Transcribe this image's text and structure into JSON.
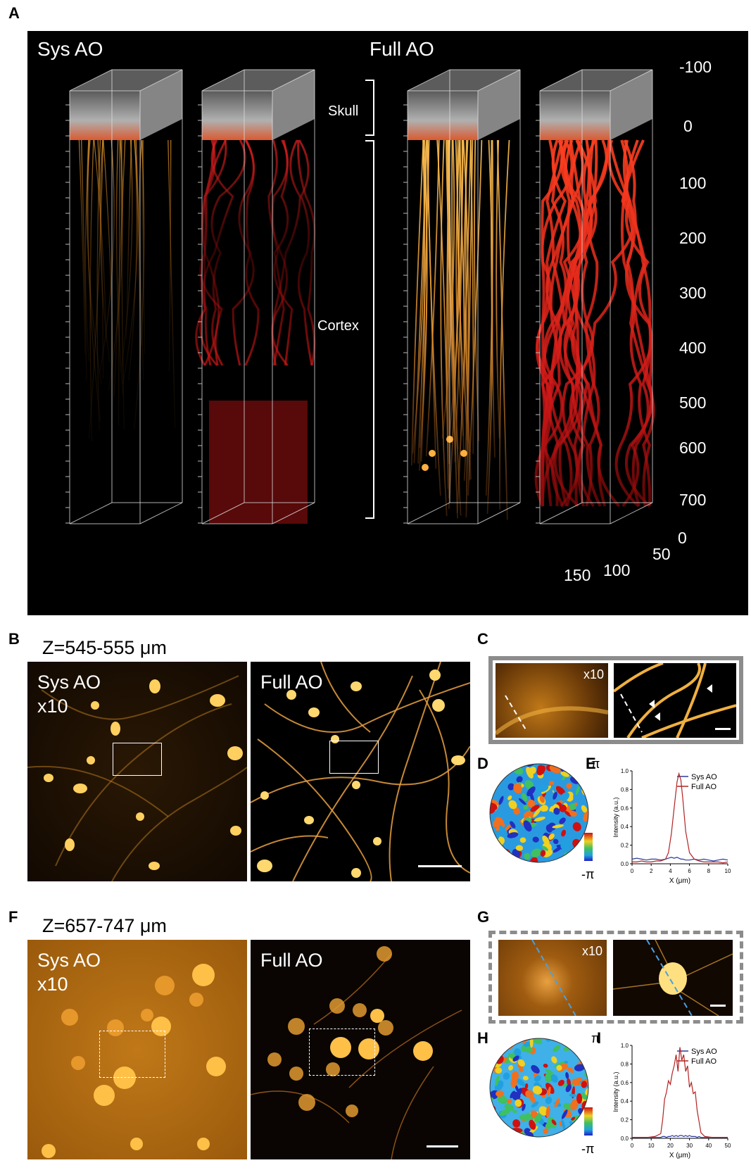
{
  "panel_labels": {
    "a": "A",
    "b": "B",
    "c": "C",
    "d": "D",
    "e": "E",
    "f": "F",
    "g": "G",
    "h": "H",
    "i": "I"
  },
  "panel_a": {
    "sys_label": "Sys AO",
    "full_label": "Full AO",
    "skull_label": "Skull",
    "cortex_label": "Cortex",
    "depth_ticks": [
      "-100",
      "0",
      "100",
      "200",
      "300",
      "400",
      "500",
      "600",
      "700"
    ],
    "base_ticks": {
      "z0": "0",
      "x50": "50",
      "x100": "100",
      "x150": "150"
    },
    "colors": {
      "neuron": "#f0a030",
      "vessel": "#d81818",
      "skull": "#c8c8c8"
    }
  },
  "panel_b": {
    "title": "Z=545-555 μm",
    "sys_label_line1": "Sys AO",
    "sys_label_line2": "x10",
    "full_label": "Full AO"
  },
  "panel_c": {
    "zoom_label": "x10"
  },
  "panel_d": {
    "pi_max": "π",
    "pi_min": "-π"
  },
  "panel_f": {
    "title": "Z=657-747 μm",
    "sys_label_line1": "Sys AO",
    "sys_label_line2": "x10",
    "full_label": "Full AO"
  },
  "panel_g": {
    "zoom_label": "x10"
  },
  "panel_h": {
    "pi_max": "π",
    "pi_min": "-π"
  },
  "chart_data": [
    {
      "panel": "E",
      "type": "line",
      "xlabel": "X (μm)",
      "ylabel": "Intensity (a.u.)",
      "xlim": [
        0,
        10
      ],
      "ylim": [
        0,
        1.0
      ],
      "xticks": [
        "0",
        "2",
        "4",
        "6",
        "8",
        "10"
      ],
      "yticks": [
        "0.0",
        "0.2",
        "0.4",
        "0.6",
        "0.8",
        "1.0"
      ],
      "legend": "top-right",
      "x": [
        0,
        0.5,
        1,
        1.5,
        2,
        2.5,
        3,
        3.5,
        3.8,
        4.1,
        4.4,
        4.7,
        4.9,
        5.1,
        5.3,
        5.6,
        6,
        6.5,
        7,
        7.5,
        8,
        8.5,
        9,
        9.5,
        10
      ],
      "series": [
        {
          "name": "Sys AO",
          "color": "#2a3a9a",
          "values": [
            0.05,
            0.06,
            0.05,
            0.04,
            0.05,
            0.05,
            0.04,
            0.05,
            0.06,
            0.07,
            0.06,
            0.07,
            0.06,
            0.05,
            0.05,
            0.04,
            0.04,
            0.05,
            0.04,
            0.05,
            0.04,
            0.03,
            0.04,
            0.05,
            0.04
          ]
        },
        {
          "name": "Full AO",
          "color": "#b22222",
          "values": [
            0.02,
            0.02,
            0.03,
            0.02,
            0.02,
            0.03,
            0.03,
            0.05,
            0.12,
            0.32,
            0.6,
            0.88,
            0.97,
            0.9,
            0.7,
            0.35,
            0.12,
            0.05,
            0.03,
            0.02,
            0.02,
            0.02,
            0.02,
            0.01,
            0.02
          ]
        }
      ]
    },
    {
      "panel": "I",
      "type": "line",
      "xlabel": "X (μm)",
      "ylabel": "Intensity (a.u.)",
      "xlim": [
        0,
        50
      ],
      "ylim": [
        0,
        1.0
      ],
      "xticks": [
        "0",
        "10",
        "20",
        "30",
        "40",
        "50"
      ],
      "yticks": [
        "0.0",
        "0.2",
        "0.4",
        "0.6",
        "0.8",
        "1.0"
      ],
      "legend": "top-right",
      "x": [
        0,
        4,
        8,
        12,
        15,
        16,
        17,
        18,
        19,
        20,
        21,
        22,
        23,
        24,
        25,
        26,
        27,
        28,
        29,
        30,
        31,
        32,
        33,
        34,
        35,
        36,
        38,
        42,
        46,
        50
      ],
      "series": [
        {
          "name": "Sys AO",
          "color": "#2a3a9a",
          "values": [
            0.01,
            0.01,
            0.01,
            0.01,
            0.01,
            0.02,
            0.02,
            0.01,
            0.02,
            0.02,
            0.03,
            0.02,
            0.03,
            0.02,
            0.03,
            0.03,
            0.02,
            0.03,
            0.02,
            0.03,
            0.02,
            0.02,
            0.02,
            0.01,
            0.02,
            0.01,
            0.01,
            0.01,
            0.01,
            0.01
          ]
        },
        {
          "name": "Full AO",
          "color": "#b22222",
          "values": [
            0.01,
            0.01,
            0.01,
            0.02,
            0.05,
            0.2,
            0.42,
            0.5,
            0.62,
            0.58,
            0.7,
            0.78,
            0.9,
            0.72,
            0.98,
            0.84,
            0.9,
            0.72,
            0.78,
            0.55,
            0.6,
            0.48,
            0.5,
            0.3,
            0.18,
            0.06,
            0.02,
            0.01,
            0.01,
            0.01
          ]
        }
      ]
    }
  ]
}
